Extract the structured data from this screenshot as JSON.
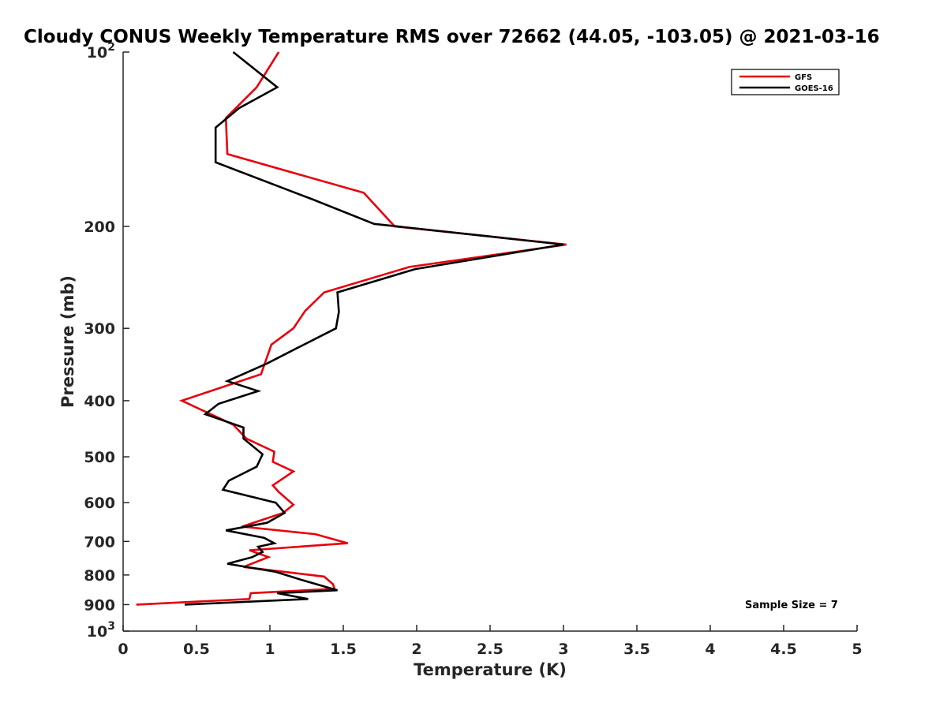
{
  "chart_data": {
    "type": "line",
    "title": "Cloudy CONUS Weekly Temperature RMS over 72662 (44.05, -103.05) @ 2021-03-16",
    "xlabel": "Temperature (K)",
    "ylabel": "Pressure (mb)",
    "xlim": [
      0,
      5
    ],
    "ylim": [
      100,
      1000
    ],
    "y_scale": "log",
    "y_reversed": true,
    "grid": false,
    "legend_position": "top-right",
    "x_ticks": [
      "0",
      "0.5",
      "1",
      "1.5",
      "2",
      "2.5",
      "3",
      "3.5",
      "4",
      "4.5",
      "5"
    ],
    "y_ticks": [
      {
        "value": 100,
        "label": "10",
        "sup": "2"
      },
      {
        "value": 200,
        "label": "200",
        "sup": ""
      },
      {
        "value": 300,
        "label": "300",
        "sup": ""
      },
      {
        "value": 400,
        "label": "400",
        "sup": ""
      },
      {
        "value": 500,
        "label": "500",
        "sup": ""
      },
      {
        "value": 600,
        "label": "600",
        "sup": ""
      },
      {
        "value": 700,
        "label": "700",
        "sup": ""
      },
      {
        "value": 800,
        "label": "800",
        "sup": ""
      },
      {
        "value": 900,
        "label": "900",
        "sup": ""
      },
      {
        "value": 1000,
        "label": "10",
        "sup": "3"
      }
    ],
    "series": [
      {
        "name": "GFS",
        "color": "#e8000b",
        "points": [
          [
            1.06,
            100
          ],
          [
            0.91,
            115
          ],
          [
            0.7,
            130
          ],
          [
            0.71,
            150
          ],
          [
            1.64,
            175
          ],
          [
            1.85,
            200
          ],
          [
            3.02,
            215
          ],
          [
            1.95,
            235
          ],
          [
            1.37,
            260
          ],
          [
            1.24,
            280
          ],
          [
            1.16,
            300
          ],
          [
            1.01,
            320
          ],
          [
            0.94,
            360
          ],
          [
            0.4,
            400
          ],
          [
            0.75,
            440
          ],
          [
            0.84,
            465
          ],
          [
            1.03,
            490
          ],
          [
            1.02,
            510
          ],
          [
            1.16,
            530
          ],
          [
            1.02,
            560
          ],
          [
            1.06,
            575
          ],
          [
            1.16,
            605
          ],
          [
            1.09,
            625
          ],
          [
            0.81,
            660
          ],
          [
            1.31,
            680
          ],
          [
            1.53,
            705
          ],
          [
            0.86,
            725
          ],
          [
            0.99,
            745
          ],
          [
            0.82,
            775
          ],
          [
            1.37,
            805
          ],
          [
            1.43,
            830
          ],
          [
            1.44,
            845
          ],
          [
            0.87,
            860
          ],
          [
            0.86,
            880
          ],
          [
            0.09,
            900
          ]
        ]
      },
      {
        "name": "GOES-16",
        "color": "#000000",
        "points": [
          [
            0.75,
            100
          ],
          [
            1.05,
            115
          ],
          [
            0.79,
            125
          ],
          [
            0.63,
            135
          ],
          [
            0.63,
            155
          ],
          [
            1.3,
            180
          ],
          [
            1.71,
            198
          ],
          [
            3.0,
            215
          ],
          [
            1.99,
            237
          ],
          [
            1.46,
            260
          ],
          [
            1.47,
            281
          ],
          [
            1.45,
            300
          ],
          [
            1.18,
            325
          ],
          [
            0.98,
            345
          ],
          [
            0.71,
            370
          ],
          [
            0.92,
            385
          ],
          [
            0.65,
            405
          ],
          [
            0.56,
            422
          ],
          [
            0.82,
            445
          ],
          [
            0.82,
            465
          ],
          [
            0.95,
            495
          ],
          [
            0.91,
            520
          ],
          [
            0.72,
            550
          ],
          [
            0.68,
            570
          ],
          [
            1.04,
            600
          ],
          [
            1.1,
            625
          ],
          [
            0.98,
            650
          ],
          [
            0.7,
            670
          ],
          [
            0.96,
            690
          ],
          [
            1.03,
            705
          ],
          [
            0.92,
            715
          ],
          [
            0.95,
            730
          ],
          [
            0.88,
            745
          ],
          [
            0.71,
            765
          ],
          [
            1.04,
            790
          ],
          [
            1.21,
            815
          ],
          [
            1.46,
            850
          ],
          [
            1.05,
            860
          ],
          [
            1.26,
            880
          ],
          [
            0.42,
            900
          ]
        ]
      }
    ],
    "annotations": [
      "Sample Size = 7"
    ]
  }
}
